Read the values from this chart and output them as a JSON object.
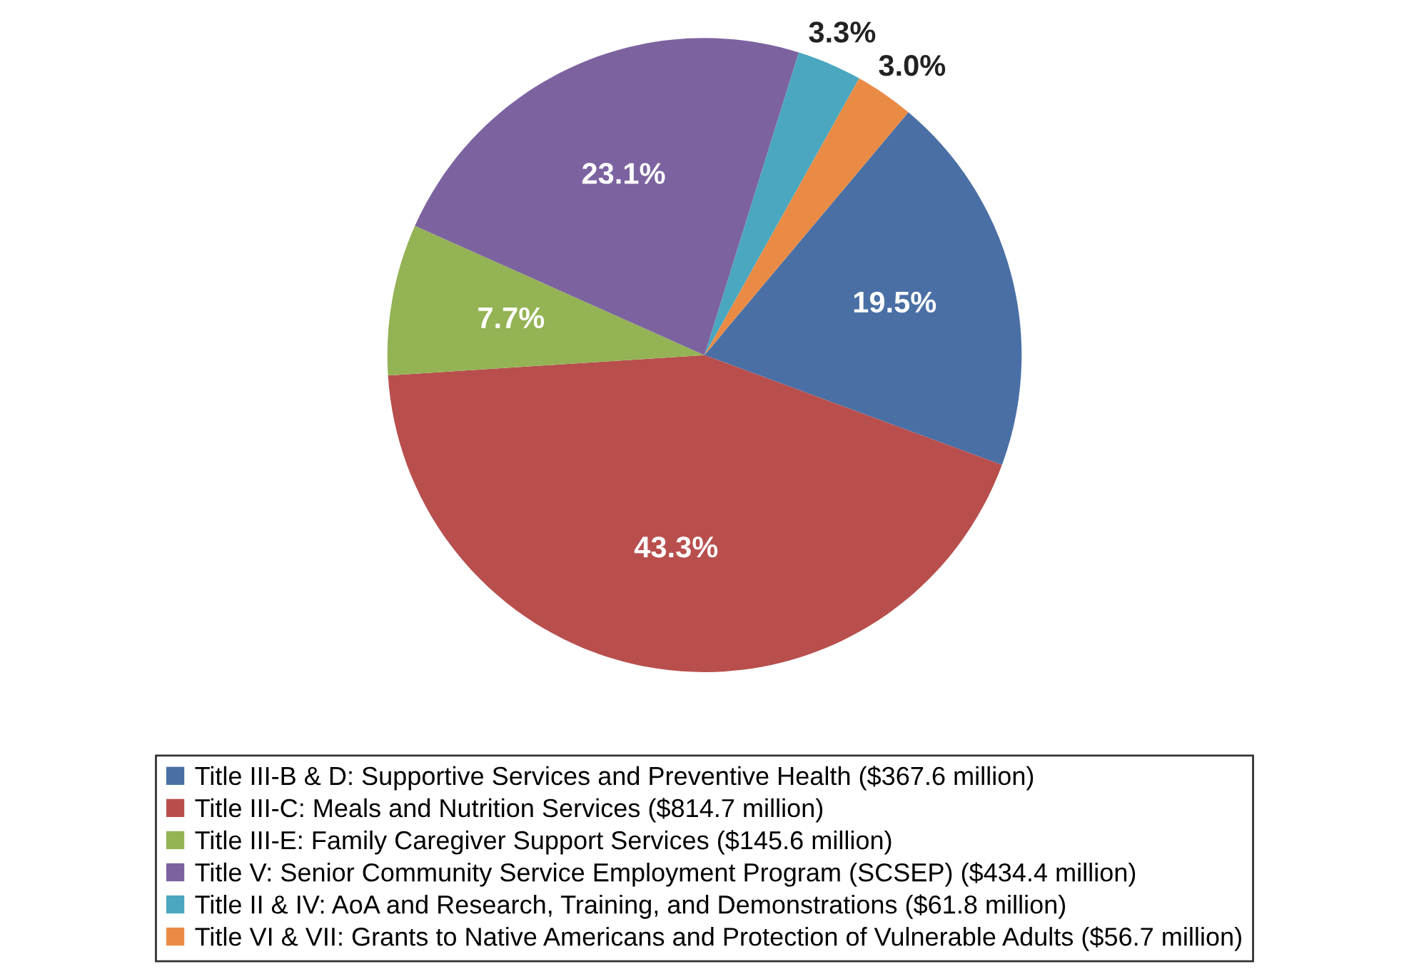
{
  "chart_data": {
    "type": "pie",
    "categories": [
      "Title III-B & D: Supportive Services and Preventive Health ($367.6 million)",
      "Title III-C: Meals and Nutrition Services ($814.7 million)",
      "Title III-E: Family Caregiver Support Services ($145.6 million)",
      "Title V: Senior Community Service Employment Program (SCSEP) ($434.4 million)",
      "Title II & IV: AoA and Research, Training, and Demonstrations ($61.8 million)",
      "Title VI & VII: Grants to Native Americans and Protection of Vulnerable Adults ($56.7 million)"
    ],
    "values": [
      19.5,
      43.3,
      7.7,
      23.1,
      3.3,
      3.0
    ],
    "value_labels": [
      "19.5%",
      "43.3%",
      "7.7%",
      "23.1%",
      "3.3%",
      "3.0%"
    ],
    "colors": [
      "#4a6fa5",
      "#b84f4d",
      "#94b355",
      "#7c63a0",
      "#4aa7bf",
      "#e98b45"
    ],
    "legend": "bottom"
  }
}
